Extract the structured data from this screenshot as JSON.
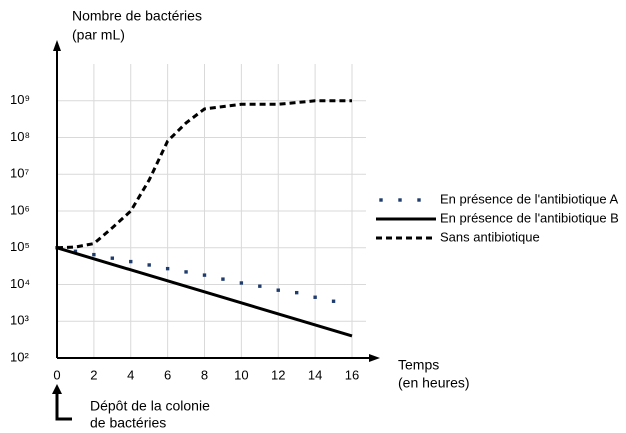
{
  "chart_data": {
    "type": "line",
    "y_label": [
      "Nombre de bactéries",
      "(par mL)"
    ],
    "x_label": [
      "Temps",
      "(en heures)"
    ],
    "annotation": [
      "Dépôt de la colonie",
      "de bactéries"
    ],
    "log_y": true,
    "grid": true,
    "legend": "right",
    "xlim": [
      0,
      16
    ],
    "xticks": [
      0,
      2,
      4,
      6,
      8,
      10,
      12,
      14,
      16
    ],
    "ylim": [
      100,
      10000000000
    ],
    "yticks": [
      {
        "value": 100,
        "label": "10²"
      },
      {
        "value": 1000,
        "label": "10³"
      },
      {
        "value": 10000,
        "label": "10⁴"
      },
      {
        "value": 100000,
        "label": "10⁵"
      },
      {
        "value": 1000000,
        "label": "10⁶"
      },
      {
        "value": 10000000,
        "label": "10⁷"
      },
      {
        "value": 100000000,
        "label": "10⁸"
      },
      {
        "value": 1000000000,
        "label": "10⁹"
      }
    ],
    "series": [
      {
        "name": "En présence de l'antibiotique A",
        "color": "#1f3c6e",
        "style": "dots",
        "x": [
          0,
          1,
          2,
          3,
          4,
          5,
          6,
          7,
          8,
          9,
          10,
          11,
          12,
          13,
          14,
          15
        ],
        "values": [
          100000,
          80000,
          65000,
          52000,
          42000,
          34000,
          27000,
          22000,
          18000,
          14000,
          11000,
          9000,
          7000,
          6000,
          4500,
          3500
        ]
      },
      {
        "name": "En présence de l'antibiotique B",
        "color": "#000000",
        "style": "solid",
        "x": [
          0,
          16
        ],
        "values": [
          100000,
          400
        ]
      },
      {
        "name": "Sans antibiotique",
        "color": "#000000",
        "style": "dashed",
        "x": [
          0,
          1,
          2,
          3,
          4,
          5,
          6,
          7,
          8,
          10,
          12,
          14,
          16
        ],
        "values": [
          100000,
          105000,
          130000,
          350000,
          1000000,
          7000000,
          80000000,
          250000000,
          600000000,
          800000000,
          800000000,
          1000000000,
          1000000000
        ]
      }
    ]
  }
}
